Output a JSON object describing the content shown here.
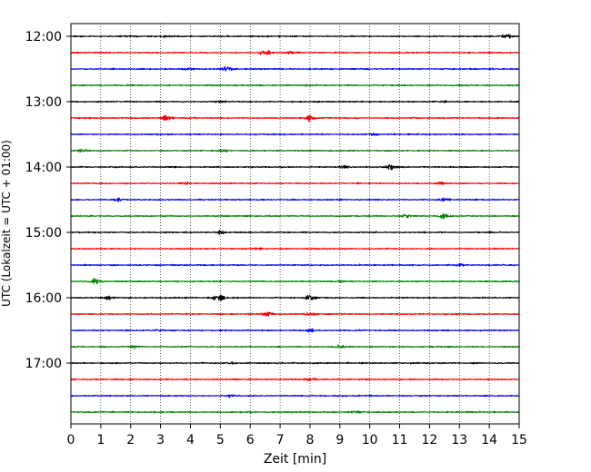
{
  "chart_data": {
    "type": "line",
    "xlabel": "Zeit  [min]",
    "ylabel": "UTC (Lokalzeit = UTC + 01:00)",
    "xlim": [
      0,
      15
    ],
    "x_ticks": [
      "0",
      "1",
      "2",
      "3",
      "4",
      "5",
      "6",
      "7",
      "8",
      "9",
      "10",
      "11",
      "12",
      "13",
      "14",
      "15"
    ],
    "y_ticks": [
      "12:00",
      "13:00",
      "14:00",
      "15:00",
      "16:00",
      "17:00"
    ],
    "grid_x": true,
    "color_cycle": [
      "#000000",
      "#ff0000",
      "#0000ff",
      "#008000"
    ],
    "trace_interval_minutes": 15,
    "traces": [
      {
        "start": "12:00",
        "color": "#000000",
        "events": [
          {
            "t": 3.3,
            "a": 0.25
          },
          {
            "t": 14.6,
            "a": 0.6
          }
        ]
      },
      {
        "start": "12:15",
        "color": "#ff0000",
        "events": [
          {
            "t": 6.5,
            "a": 0.9
          },
          {
            "t": 7.4,
            "a": 0.5
          }
        ]
      },
      {
        "start": "12:30",
        "color": "#0000ff",
        "events": [
          {
            "t": 5.2,
            "a": 0.8
          },
          {
            "t": 3.9,
            "a": 0.3
          }
        ]
      },
      {
        "start": "12:45",
        "color": "#008000",
        "events": [
          {
            "t": 8.0,
            "a": 0.2
          }
        ]
      },
      {
        "start": "13:00",
        "color": "#000000",
        "events": [
          {
            "t": 5.0,
            "a": 0.3
          },
          {
            "t": 12.4,
            "a": 0.3
          }
        ]
      },
      {
        "start": "13:15",
        "color": "#ff0000",
        "events": [
          {
            "t": 3.2,
            "a": 0.7
          },
          {
            "t": 8.0,
            "a": 0.6
          }
        ]
      },
      {
        "start": "13:30",
        "color": "#0000ff",
        "events": [
          {
            "t": 10.1,
            "a": 0.3
          }
        ]
      },
      {
        "start": "13:45",
        "color": "#008000",
        "events": [
          {
            "t": 0.4,
            "a": 0.3
          },
          {
            "t": 5.1,
            "a": 0.3
          }
        ]
      },
      {
        "start": "14:00",
        "color": "#000000",
        "events": [
          {
            "t": 10.7,
            "a": 0.9
          },
          {
            "t": 9.1,
            "a": 0.4
          }
        ]
      },
      {
        "start": "14:15",
        "color": "#ff0000",
        "events": [
          {
            "t": 3.8,
            "a": 0.3
          },
          {
            "t": 12.4,
            "a": 0.3
          }
        ]
      },
      {
        "start": "14:30",
        "color": "#0000ff",
        "events": [
          {
            "t": 1.6,
            "a": 0.4
          },
          {
            "t": 12.5,
            "a": 0.5
          }
        ]
      },
      {
        "start": "14:45",
        "color": "#008000",
        "events": [
          {
            "t": 12.5,
            "a": 0.8
          },
          {
            "t": 11.2,
            "a": 0.3
          }
        ]
      },
      {
        "start": "15:00",
        "color": "#000000",
        "events": [
          {
            "t": 5.0,
            "a": 0.4
          }
        ]
      },
      {
        "start": "15:15",
        "color": "#ff0000",
        "events": [
          {
            "t": 6.2,
            "a": 0.2
          }
        ]
      },
      {
        "start": "15:30",
        "color": "#0000ff",
        "events": [
          {
            "t": 13.0,
            "a": 0.4
          }
        ]
      },
      {
        "start": "15:45",
        "color": "#008000",
        "events": [
          {
            "t": 0.8,
            "a": 0.8
          },
          {
            "t": 9.0,
            "a": 0.3
          }
        ]
      },
      {
        "start": "16:00",
        "color": "#000000",
        "events": [
          {
            "t": 4.9,
            "a": 0.9
          },
          {
            "t": 8.0,
            "a": 0.9
          },
          {
            "t": 1.3,
            "a": 0.4
          }
        ]
      },
      {
        "start": "16:15",
        "color": "#ff0000",
        "events": [
          {
            "t": 6.6,
            "a": 0.5
          },
          {
            "t": 8.0,
            "a": 0.4
          }
        ]
      },
      {
        "start": "16:30",
        "color": "#0000ff",
        "events": [
          {
            "t": 8.0,
            "a": 0.4
          },
          {
            "t": 3.0,
            "a": 0.3
          }
        ]
      },
      {
        "start": "16:45",
        "color": "#008000",
        "events": [
          {
            "t": 2.1,
            "a": 0.35
          },
          {
            "t": 9.0,
            "a": 0.5
          }
        ]
      },
      {
        "start": "17:00",
        "color": "#000000",
        "events": [
          {
            "t": 5.4,
            "a": 0.3
          }
        ]
      },
      {
        "start": "17:15",
        "color": "#ff0000",
        "events": [
          {
            "t": 8.0,
            "a": 0.6
          }
        ]
      },
      {
        "start": "17:30",
        "color": "#0000ff",
        "events": [
          {
            "t": 5.4,
            "a": 0.3
          }
        ]
      },
      {
        "start": "17:45",
        "color": "#008000",
        "events": [
          {
            "t": 9.5,
            "a": 0.3
          }
        ]
      }
    ]
  }
}
